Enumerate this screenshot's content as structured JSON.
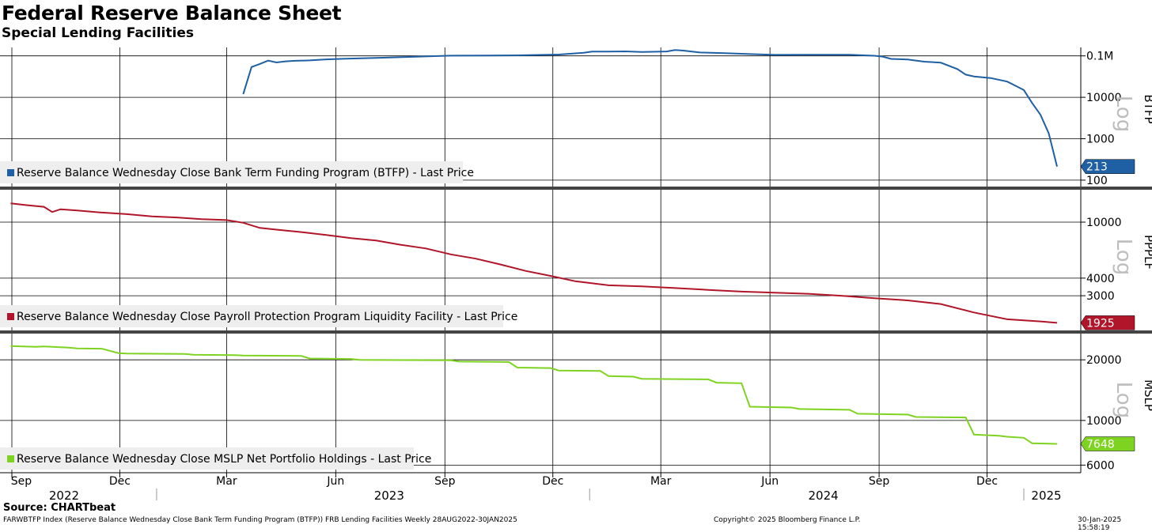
{
  "title": "Federal Reserve Balance Sheet",
  "subtitle": "Special Lending Facilities",
  "source": "Source: CHARTbeat",
  "footer": {
    "left": "FARWBTFP Index (Reserve Balance Wednesday Close Bank Term Funding Program (BTFP)) FRB Lending Facilities  Weekly 28AUG2022-30JAN2025",
    "center": "Copyright© 2025 Bloomberg Finance L.P.",
    "right": "30-Jan-2025 15:58:19"
  },
  "x_axis": {
    "month_ticks": [
      "Sep",
      "Dec",
      "Mar",
      "Jun",
      "Sep",
      "Dec",
      "Mar",
      "Jun",
      "Sep",
      "Dec"
    ],
    "year_labels": [
      "2022",
      "2023",
      "2024",
      "2025"
    ]
  },
  "chart_data": [
    {
      "type": "line",
      "panel_label": "BTFP",
      "scale": "log",
      "scale_label": "Log",
      "legend": "Reserve Balance Wednesday Close Bank Term Funding Program (BTFP) - Last Price",
      "color": "#1f5fa3",
      "y_ticks": [
        "0.1M",
        "10000",
        "1000",
        "100"
      ],
      "y_tick_values": [
        100000,
        10000,
        1000,
        100
      ],
      "ylim": [
        70,
        160000
      ],
      "last_value": 213,
      "last_label": "213",
      "x": [
        "2023-03-15",
        "2023-03-22",
        "2023-03-29",
        "2023-04-05",
        "2023-04-12",
        "2023-04-19",
        "2023-04-26",
        "2023-05-10",
        "2023-05-24",
        "2023-06-07",
        "2023-07-05",
        "2023-08-02",
        "2023-09-06",
        "2023-10-04",
        "2023-11-01",
        "2023-12-06",
        "2023-12-27",
        "2024-01-03",
        "2024-01-17",
        "2024-01-31",
        "2024-02-14",
        "2024-03-06",
        "2024-03-13",
        "2024-03-20",
        "2024-04-03",
        "2024-04-24",
        "2024-05-15",
        "2024-06-05",
        "2024-07-03",
        "2024-08-07",
        "2024-08-28",
        "2024-09-04",
        "2024-09-11",
        "2024-09-25",
        "2024-10-09",
        "2024-10-23",
        "2024-11-06",
        "2024-11-13",
        "2024-11-20",
        "2024-12-04",
        "2024-12-18",
        "2024-12-25",
        "2025-01-01",
        "2025-01-08",
        "2025-01-15",
        "2025-01-22",
        "2025-01-29"
      ],
      "y": [
        11900,
        53700,
        64000,
        76700,
        69400,
        73400,
        75900,
        77700,
        82300,
        85000,
        89600,
        94500,
        101200,
        102300,
        103100,
        107900,
        118500,
        126800,
        127000,
        128500,
        124800,
        128000,
        138500,
        134300,
        120700,
        116400,
        110800,
        106000,
        107000,
        106700,
        100800,
        96300,
        84500,
        82000,
        72700,
        68500,
        48000,
        35300,
        31900,
        29200,
        24000,
        19000,
        15000,
        7300,
        3800,
        1350,
        213
      ]
    },
    {
      "type": "line",
      "panel_label": "PPPLF",
      "scale": "log",
      "scale_label": "Log",
      "legend": "Reserve Balance Wednesday Close Payroll Protection Program Liquidity Facility - Last Price",
      "color": "#b0152a",
      "y_ticks": [
        "10000",
        "4000",
        "3000"
      ],
      "y_tick_values": [
        10000,
        4000,
        3000
      ],
      "ylim": [
        1700,
        17000
      ],
      "last_value": 1925,
      "last_label": "1925",
      "x": [
        "2022-08-31",
        "2022-09-14",
        "2022-09-28",
        "2022-10-05",
        "2022-10-12",
        "2022-10-26",
        "2022-11-16",
        "2022-12-07",
        "2022-12-28",
        "2023-01-18",
        "2023-02-08",
        "2023-03-01",
        "2023-03-15",
        "2023-03-29",
        "2023-04-12",
        "2023-05-03",
        "2023-05-24",
        "2023-06-14",
        "2023-07-05",
        "2023-07-26",
        "2023-08-16",
        "2023-09-06",
        "2023-09-27",
        "2023-10-18",
        "2023-11-08",
        "2023-11-29",
        "2023-12-20",
        "2024-01-17",
        "2024-02-14",
        "2024-03-13",
        "2024-04-10",
        "2024-05-08",
        "2024-06-05",
        "2024-07-03",
        "2024-07-31",
        "2024-08-28",
        "2024-09-25",
        "2024-10-23",
        "2024-11-20",
        "2024-12-18",
        "2025-01-15",
        "2025-01-29"
      ],
      "y": [
        13600,
        13200,
        12850,
        11800,
        12350,
        12100,
        11700,
        11400,
        11000,
        10800,
        10500,
        10350,
        9900,
        9100,
        8850,
        8500,
        8100,
        7700,
        7400,
        6900,
        6500,
        5900,
        5500,
        5000,
        4500,
        4150,
        3800,
        3560,
        3500,
        3400,
        3300,
        3210,
        3150,
        3100,
        3000,
        2880,
        2780,
        2620,
        2280,
        2040,
        1970,
        1925
      ]
    },
    {
      "type": "line",
      "panel_label": "MSLP",
      "scale": "log",
      "scale_label": "Log",
      "legend": "Reserve Balance Wednesday Close MSLP Net Portfolio Holdings - Last Price",
      "color": "#7ed321",
      "y_ticks": [
        "20000",
        "10000",
        "6000"
      ],
      "y_tick_values": [
        20000,
        10000,
        6000
      ],
      "ylim": [
        5500,
        27000
      ],
      "last_value": 7648,
      "last_label": "7648",
      "x": [
        "2022-08-31",
        "2022-09-21",
        "2022-09-28",
        "2022-10-19",
        "2022-10-26",
        "2022-11-16",
        "2022-11-30",
        "2022-12-07",
        "2023-01-25",
        "2023-02-01",
        "2023-03-08",
        "2023-03-15",
        "2023-05-03",
        "2023-05-10",
        "2023-06-14",
        "2023-06-21",
        "2023-09-06",
        "2023-09-13",
        "2023-10-25",
        "2023-11-01",
        "2023-11-29",
        "2023-12-06",
        "2024-01-10",
        "2024-01-17",
        "2024-02-07",
        "2024-02-14",
        "2024-04-10",
        "2024-04-17",
        "2024-05-08",
        "2024-05-15",
        "2024-06-19",
        "2024-06-26",
        "2024-08-07",
        "2024-08-14",
        "2024-09-25",
        "2024-10-02",
        "2024-11-13",
        "2024-11-20",
        "2024-12-11",
        "2024-12-18",
        "2025-01-01",
        "2025-01-08",
        "2025-01-29"
      ],
      "y": [
        23400,
        23200,
        23300,
        23000,
        22800,
        22700,
        21600,
        21500,
        21400,
        21200,
        21100,
        21000,
        20900,
        20300,
        20200,
        20000,
        19900,
        19600,
        19500,
        18300,
        18200,
        17700,
        17600,
        16600,
        16500,
        16100,
        16000,
        15400,
        15300,
        11700,
        11600,
        11400,
        11300,
        10800,
        10700,
        10400,
        10350,
        8500,
        8400,
        8300,
        8200,
        7700,
        7648
      ]
    }
  ]
}
